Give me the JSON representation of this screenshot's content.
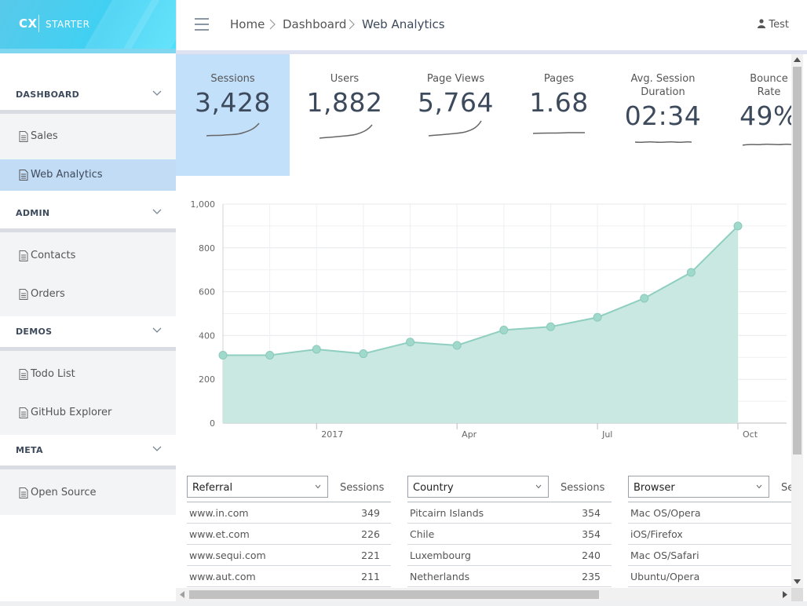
{
  "brand": {
    "logo": "CX",
    "name": "STARTER"
  },
  "breadcrumb": {
    "home": "Home",
    "dashboard": "Dashboard",
    "current": "Web Analytics"
  },
  "user": {
    "name": "Test"
  },
  "sidebar": {
    "sections": [
      {
        "title": "DASHBOARD",
        "items": [
          "Sales",
          "Web Analytics"
        ]
      },
      {
        "title": "ADMIN",
        "items": [
          "Contacts",
          "Orders"
        ]
      },
      {
        "title": "DEMOS",
        "items": [
          "Todo List",
          "GitHub Explorer"
        ]
      },
      {
        "title": "META",
        "items": [
          "Open Source"
        ]
      }
    ],
    "active_item": "Web Analytics"
  },
  "kpis": [
    {
      "label": "Sessions",
      "value": "3,428"
    },
    {
      "label": "Users",
      "value": "1,882"
    },
    {
      "label": "Page Views",
      "value": "5,764"
    },
    {
      "label": "Pages",
      "value": "1.68"
    },
    {
      "label": "Avg. Session Duration",
      "value": "02:34"
    },
    {
      "label": "Bounce Rate",
      "value": "49%"
    }
  ],
  "chart_data": {
    "type": "area",
    "x": [
      "2016-11",
      "2016-12",
      "2017-01",
      "2017-02",
      "2017-03",
      "2017-04",
      "2017-05",
      "2017-06",
      "2017-07",
      "2017-08",
      "2017-09",
      "2017-10"
    ],
    "values": [
      310,
      310,
      337,
      317,
      370,
      355,
      425,
      440,
      483,
      570,
      688,
      900
    ],
    "x_tick_labels": [
      "2017",
      "Apr",
      "Jul",
      "Oct"
    ],
    "y_tick_labels": [
      "0",
      "200",
      "400",
      "600",
      "800",
      "1,000"
    ],
    "ylim": [
      0,
      1000
    ],
    "grid": true,
    "fill_color": "#c9e8e1",
    "line_color": "#8fcfc0",
    "marker_color": "#9fd9cb"
  },
  "tables": [
    {
      "selector": "Referral",
      "metric": "Sessions",
      "rows": [
        {
          "key": "www.in.com",
          "value": "349"
        },
        {
          "key": "www.et.com",
          "value": "226"
        },
        {
          "key": "www.sequi.com",
          "value": "221"
        },
        {
          "key": "www.aut.com",
          "value": "211"
        }
      ]
    },
    {
      "selector": "Country",
      "metric": "Sessions",
      "rows": [
        {
          "key": "Pitcairn Islands",
          "value": "354"
        },
        {
          "key": "Chile",
          "value": "354"
        },
        {
          "key": "Luxembourg",
          "value": "240"
        },
        {
          "key": "Netherlands",
          "value": "235"
        }
      ]
    },
    {
      "selector": "Browser",
      "metric": "Sessions",
      "rows": [
        {
          "key": "Mac OS/Opera",
          "value": ""
        },
        {
          "key": "iOS/Firefox",
          "value": ""
        },
        {
          "key": "Mac OS/Safari",
          "value": ""
        },
        {
          "key": "Ubuntu/Opera",
          "value": ""
        }
      ]
    }
  ],
  "colors": {
    "accent": "#3fd1f3",
    "active_bg": "#c3dcf5",
    "kpi_active_bg": "#c3e0fb"
  },
  "icons": {
    "menu": "hamburger-icon",
    "user": "user-icon",
    "page": "document-icon",
    "expand": "chevron-down-icon"
  }
}
